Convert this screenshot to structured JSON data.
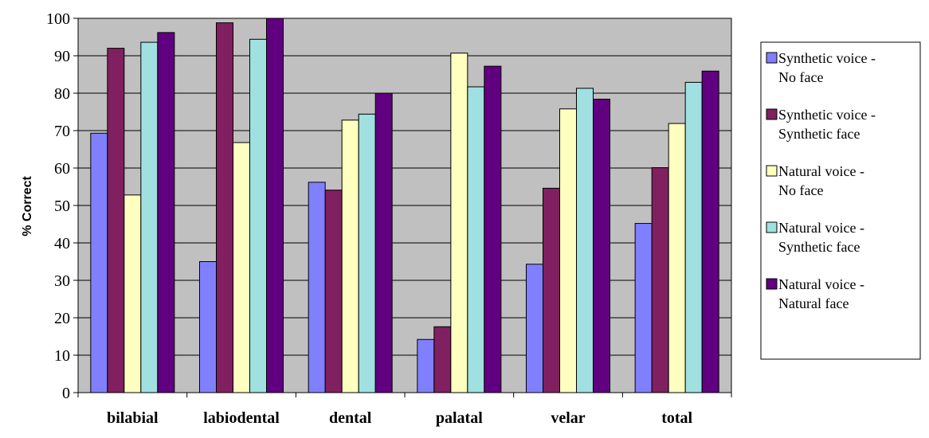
{
  "chart_data": {
    "type": "bar",
    "title": "",
    "xlabel": "",
    "ylabel": "% Correct",
    "ylim": [
      0,
      100
    ],
    "yticks": [
      0,
      10,
      20,
      30,
      40,
      50,
      60,
      70,
      80,
      90,
      100
    ],
    "ytick_labels": [
      "0",
      "10",
      "20",
      "30",
      "40",
      "50",
      "60",
      "70",
      "80",
      "90",
      "100"
    ],
    "grid": true,
    "legend_position": "right",
    "plot_background": "#C0C0C0",
    "categories": [
      "bilabial",
      "labiodental",
      "dental",
      "palatal",
      "velar",
      "total"
    ],
    "series": [
      {
        "name": "Synthetic voice - No face",
        "legend_lines": [
          "Synthetic voice -",
          "No face"
        ],
        "color": "#8080FF",
        "values": [
          69.3,
          35,
          56.2,
          14.2,
          34.3,
          45.2
        ]
      },
      {
        "name": "Synthetic voice - Synthetic face",
        "legend_lines": [
          "Synthetic voice -",
          "Synthetic face"
        ],
        "color": "#802060",
        "values": [
          92,
          98.8,
          54.1,
          17.6,
          54.6,
          60.1
        ]
      },
      {
        "name": "Natural voice - No face",
        "legend_lines": [
          "Natural voice -",
          "No face"
        ],
        "color": "#FFFFC0",
        "values": [
          52.8,
          66.8,
          72.8,
          90.7,
          75.8,
          71.9
        ]
      },
      {
        "name": "Natural voice - Synthetic face",
        "legend_lines": [
          "Natural voice -",
          "Synthetic face"
        ],
        "color": "#A0E0E0",
        "values": [
          93.6,
          94.4,
          74.4,
          81.7,
          81.3,
          82.9
        ]
      },
      {
        "name": "Natural voice - Natural face",
        "legend_lines": [
          "Natural voice -",
          "Natural face"
        ],
        "color": "#600080",
        "values": [
          96.2,
          100,
          80,
          87.2,
          78.4,
          85.9
        ]
      }
    ]
  }
}
